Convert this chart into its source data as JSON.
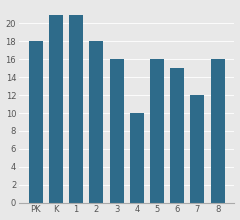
{
  "categories": [
    "PK",
    "K",
    "1",
    "2",
    "3",
    "4",
    "5",
    "6",
    "7",
    "8"
  ],
  "values": [
    18,
    21,
    21,
    18,
    16,
    10,
    16,
    15,
    12,
    16
  ],
  "bar_color": "#2e6b8a",
  "ylim": [
    0,
    22
  ],
  "yticks": [
    0,
    2,
    4,
    6,
    8,
    10,
    12,
    14,
    16,
    18,
    20
  ],
  "background_color": "#e8e8e8",
  "tick_fontsize": 6,
  "bar_width": 0.7
}
